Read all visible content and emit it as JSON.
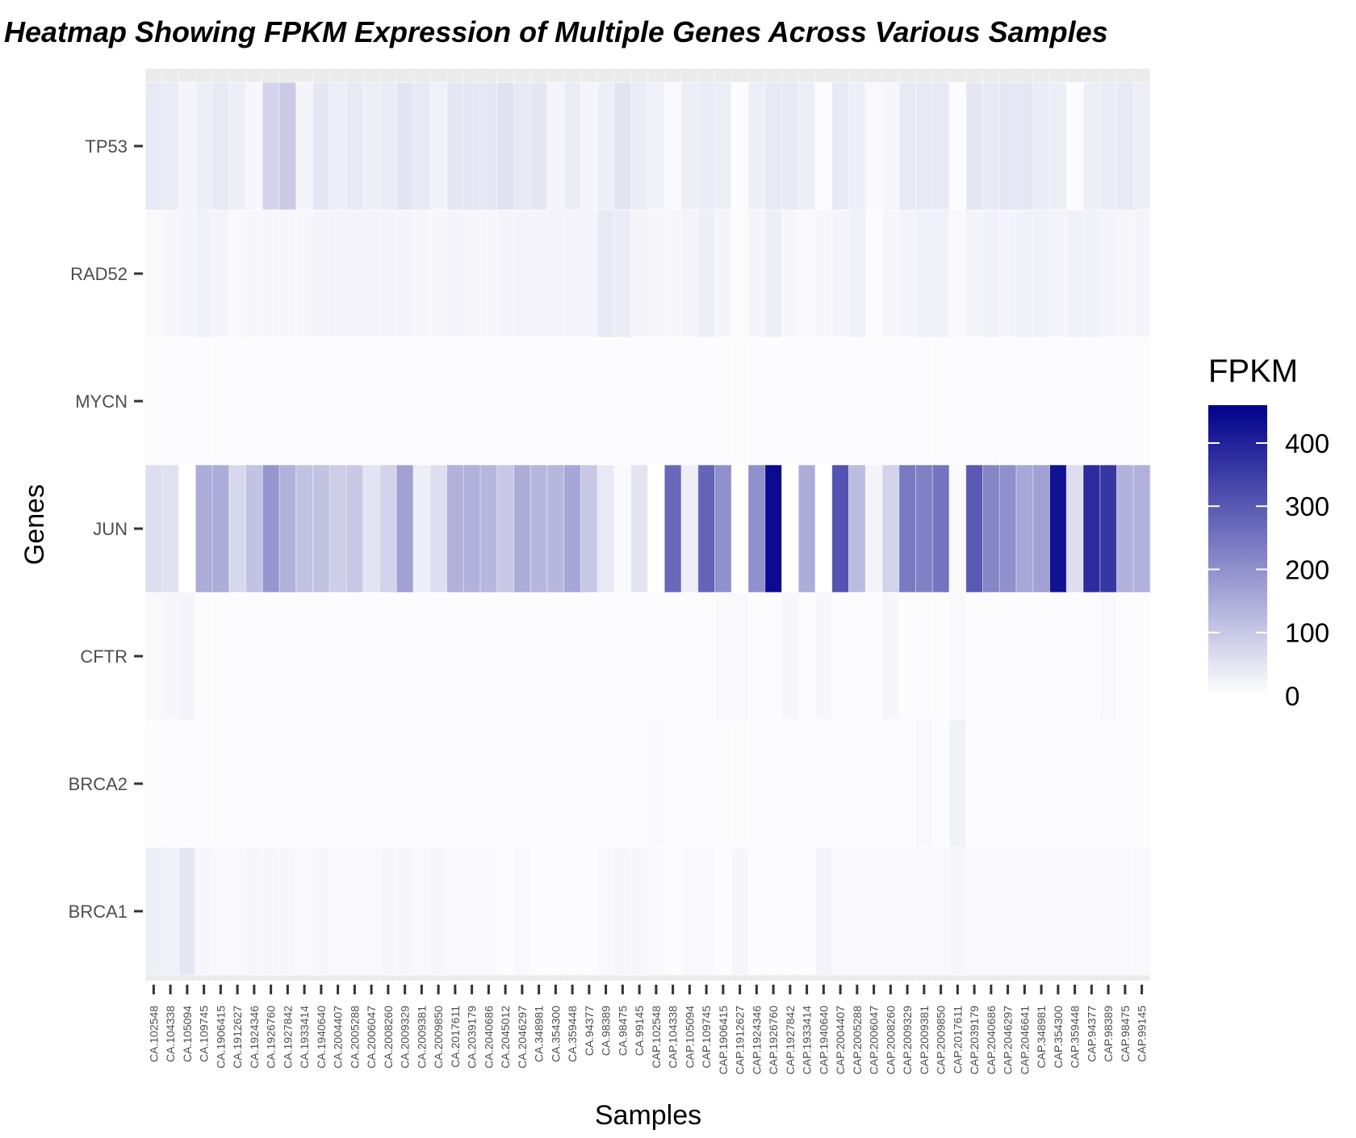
{
  "chart_data": {
    "type": "heatmap",
    "title": "Heatmap Showing FPKM Expression of Multiple Genes Across Various Samples",
    "xlabel": "Samples",
    "ylabel": "Genes",
    "legend_title": "FPKM",
    "legend_placement": "right",
    "color_low": "#ffffff",
    "color_high": "#00008b",
    "value_range": [
      0,
      460
    ],
    "legend_ticks": [
      0,
      100,
      200,
      300,
      400
    ],
    "grid": true,
    "genes": [
      "TP53",
      "RAD52",
      "MYCN",
      "JUN",
      "CFTR",
      "BRCA2",
      "BRCA1"
    ],
    "samples": [
      "CA.102548",
      "CA.104338",
      "CA.105094",
      "CA.109745",
      "CA.1906415",
      "CA.1912627",
      "CA.1924346",
      "CA.1926760",
      "CA.1927842",
      "CA.1933414",
      "CA.1940640",
      "CA.2004407",
      "CA.2005288",
      "CA.2006047",
      "CA.2008260",
      "CA.2009329",
      "CA.2009381",
      "CA.2009850",
      "CA.2017611",
      "CA.2039179",
      "CA.2040686",
      "CA.2045012",
      "CA.2046297",
      "CA.348981",
      "CA.354300",
      "CA.359448",
      "CA.94377",
      "CA.98389",
      "CA.98475",
      "CA.99145",
      "CAP.102548",
      "CAP.104338",
      "CAP.105094",
      "CAP.109745",
      "CAP.1906415",
      "CAP.1912627",
      "CAP.1924346",
      "CAP.1926760",
      "CAP.1927842",
      "CAP.1933414",
      "CAP.1940640",
      "CAP.2004407",
      "CAP.2005288",
      "CAP.2006047",
      "CAP.2008260",
      "CAP.2009329",
      "CAP.2009381",
      "CAP.2009850",
      "CAP.2017611",
      "CAP.2039179",
      "CAP.2040686",
      "CAP.2046297",
      "CAP.2046641",
      "CAP.348981",
      "CAP.354300",
      "CAP.359448",
      "CAP.94377",
      "CAP.98389",
      "CAP.98475",
      "CAP.99145"
    ],
    "values": {
      "TP53": [
        40,
        35,
        20,
        30,
        40,
        30,
        15,
        80,
        95,
        20,
        45,
        30,
        40,
        30,
        35,
        50,
        40,
        25,
        45,
        45,
        45,
        55,
        40,
        45,
        20,
        35,
        20,
        30,
        50,
        35,
        25,
        10,
        30,
        35,
        30,
        5,
        30,
        40,
        40,
        30,
        5,
        40,
        30,
        10,
        15,
        40,
        40,
        40,
        5,
        45,
        40,
        45,
        45,
        35,
        30,
        5,
        30,
        35,
        40,
        30
      ],
      "RAD52": [
        10,
        15,
        20,
        25,
        20,
        10,
        15,
        15,
        15,
        15,
        20,
        20,
        20,
        20,
        20,
        20,
        15,
        15,
        20,
        15,
        15,
        20,
        20,
        20,
        20,
        20,
        20,
        40,
        35,
        20,
        15,
        15,
        20,
        30,
        20,
        5,
        20,
        30,
        15,
        10,
        15,
        20,
        25,
        5,
        15,
        20,
        25,
        25,
        10,
        20,
        25,
        20,
        25,
        25,
        20,
        25,
        25,
        20,
        15,
        20
      ],
      "MYCN": [
        5,
        5,
        5,
        5,
        5,
        5,
        5,
        5,
        5,
        5,
        5,
        5,
        5,
        5,
        5,
        5,
        5,
        5,
        5,
        5,
        5,
        5,
        5,
        5,
        5,
        5,
        5,
        5,
        5,
        5,
        5,
        5,
        5,
        5,
        5,
        5,
        5,
        5,
        5,
        5,
        5,
        5,
        5,
        5,
        5,
        5,
        5,
        5,
        5,
        5,
        5,
        5,
        5,
        5,
        5,
        5,
        5,
        5,
        5,
        5
      ],
      "JUN": [
        60,
        55,
        0,
        150,
        150,
        70,
        110,
        190,
        140,
        110,
        110,
        90,
        100,
        50,
        80,
        170,
        30,
        60,
        140,
        140,
        130,
        100,
        150,
        130,
        130,
        160,
        100,
        40,
        10,
        50,
        0,
        270,
        30,
        280,
        200,
        0,
        200,
        440,
        0,
        150,
        0,
        310,
        120,
        20,
        80,
        240,
        230,
        250,
        10,
        300,
        220,
        200,
        160,
        170,
        430,
        60,
        380,
        360,
        140,
        140
      ],
      "CFTR": [
        10,
        15,
        20,
        5,
        5,
        5,
        5,
        5,
        5,
        5,
        5,
        5,
        5,
        5,
        5,
        5,
        5,
        5,
        5,
        5,
        5,
        5,
        5,
        5,
        5,
        5,
        5,
        5,
        5,
        5,
        5,
        5,
        5,
        5,
        10,
        10,
        5,
        5,
        15,
        5,
        15,
        5,
        5,
        5,
        15,
        5,
        5,
        5,
        10,
        5,
        5,
        5,
        5,
        5,
        5,
        5,
        5,
        10,
        5,
        5
      ],
      "BRCA2": [
        5,
        5,
        5,
        5,
        5,
        5,
        5,
        5,
        5,
        5,
        5,
        5,
        5,
        5,
        5,
        5,
        5,
        5,
        5,
        5,
        5,
        5,
        5,
        5,
        5,
        5,
        5,
        5,
        5,
        5,
        10,
        5,
        5,
        5,
        5,
        5,
        5,
        5,
        5,
        5,
        5,
        5,
        5,
        5,
        5,
        5,
        10,
        5,
        25,
        5,
        5,
        5,
        5,
        5,
        5,
        5,
        5,
        5,
        5,
        5
      ],
      "BRCA1": [
        30,
        25,
        45,
        15,
        10,
        10,
        15,
        15,
        15,
        10,
        15,
        10,
        10,
        10,
        15,
        15,
        10,
        15,
        10,
        10,
        10,
        5,
        10,
        5,
        5,
        5,
        5,
        10,
        15,
        15,
        10,
        5,
        10,
        10,
        5,
        15,
        5,
        5,
        5,
        5,
        20,
        10,
        10,
        10,
        10,
        10,
        10,
        10,
        15,
        10,
        10,
        10,
        10,
        10,
        10,
        10,
        10,
        10,
        10,
        10
      ]
    }
  }
}
